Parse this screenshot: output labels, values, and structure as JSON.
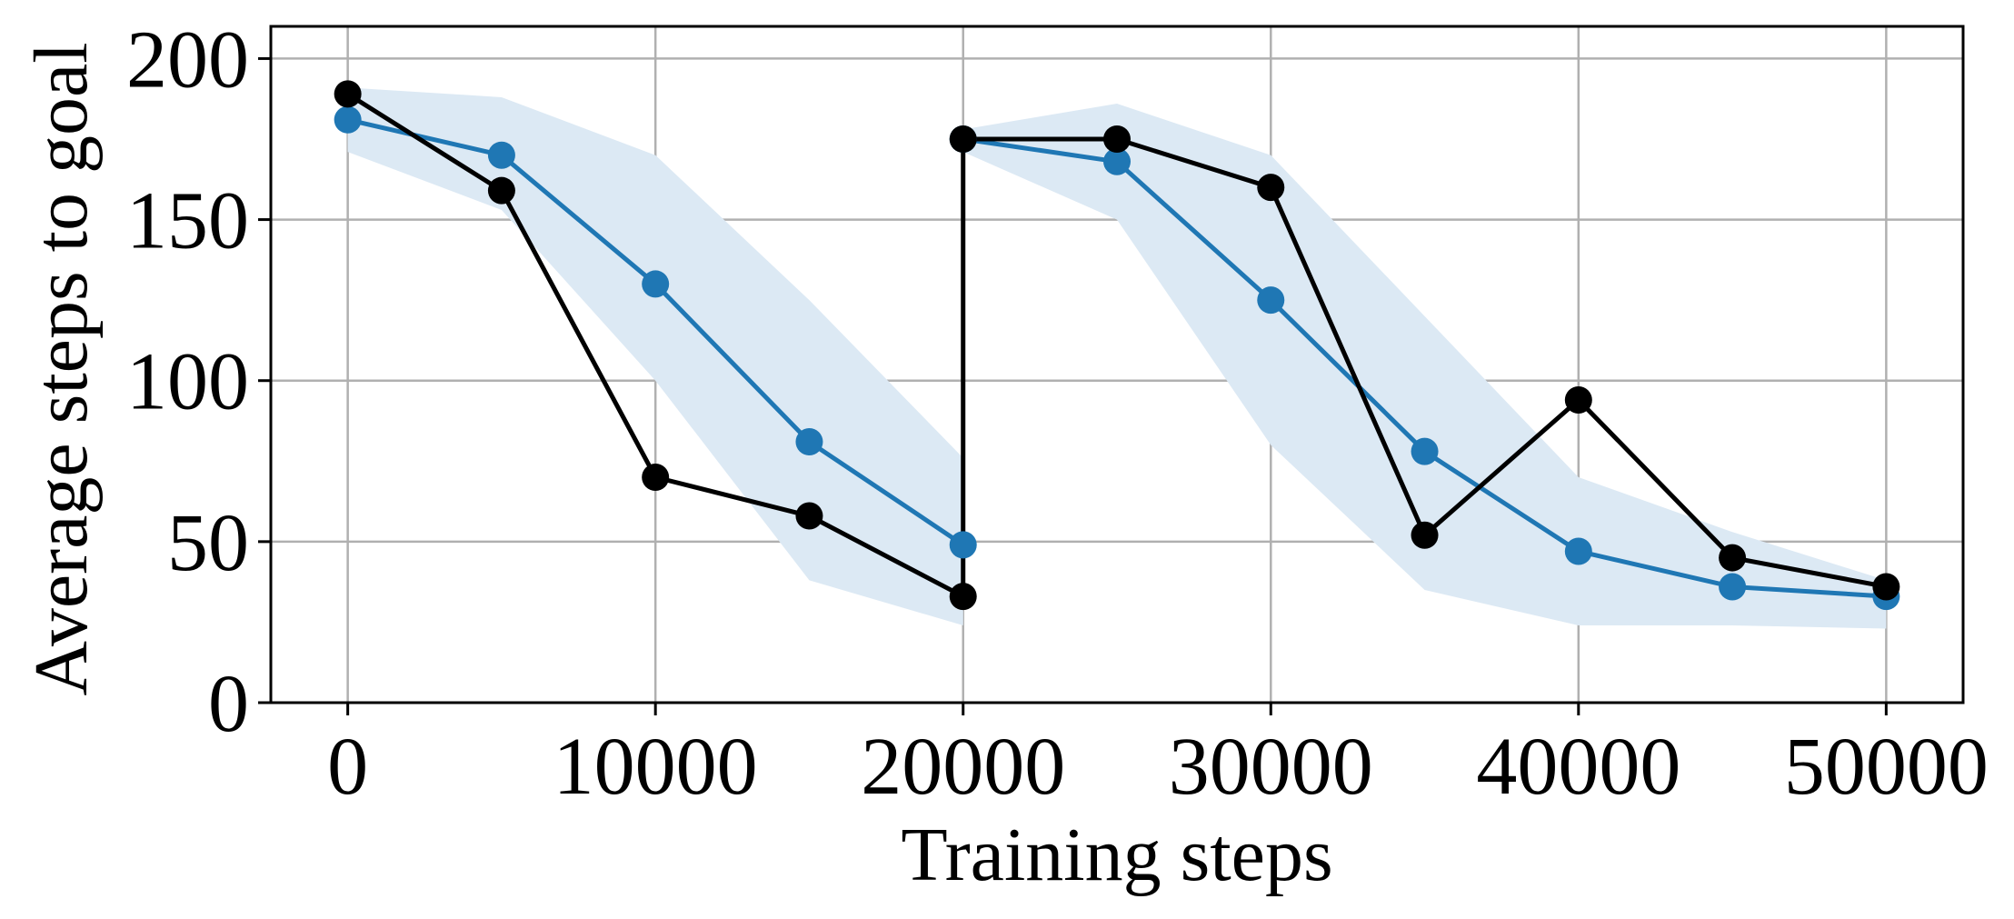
{
  "chart_data": {
    "type": "line",
    "title": "",
    "xlabel": "Training steps",
    "ylabel": "Average steps to goal",
    "xlim": [
      -2500,
      52500
    ],
    "ylim": [
      0,
      210
    ],
    "xticks": [
      0,
      10000,
      20000,
      30000,
      40000,
      50000
    ],
    "xtick_labels": [
      "0",
      "10000",
      "20000",
      "30000",
      "40000",
      "50000"
    ],
    "yticks": [
      0,
      50,
      100,
      150,
      200
    ],
    "ytick_labels": [
      "0",
      "50",
      "100",
      "150",
      "200"
    ],
    "grid": true,
    "legend": "none",
    "band": {
      "color": "#dce9f4",
      "segments": [
        {
          "x": [
            0,
            5000,
            10000,
            15000,
            20000
          ],
          "upper": [
            191,
            188,
            170,
            125,
            76
          ],
          "lower": [
            171,
            153,
            100,
            38,
            24
          ]
        },
        {
          "x": [
            20000,
            25000,
            30000,
            35000,
            40000,
            45000,
            50000
          ],
          "upper": [
            178,
            186,
            170,
            120,
            70,
            53,
            38
          ],
          "lower": [
            171,
            150,
            80,
            35,
            24,
            24,
            23
          ]
        }
      ]
    },
    "series": [
      {
        "color": "#1f77b4",
        "x": [
          0,
          5000,
          10000,
          15000,
          20000,
          20000,
          25000,
          30000,
          35000,
          40000,
          45000,
          50000
        ],
        "y": [
          181,
          170,
          130,
          81,
          49,
          175,
          168,
          125,
          78,
          47,
          36,
          33
        ],
        "breaks": [
          5
        ]
      },
      {
        "color": "#000000",
        "x": [
          0,
          5000,
          10000,
          15000,
          20000,
          20000,
          25000,
          30000,
          35000,
          40000,
          45000,
          50000
        ],
        "y": [
          189,
          159,
          70,
          58,
          33,
          175,
          175,
          160,
          52,
          94,
          45,
          36
        ],
        "breaks": []
      }
    ]
  }
}
